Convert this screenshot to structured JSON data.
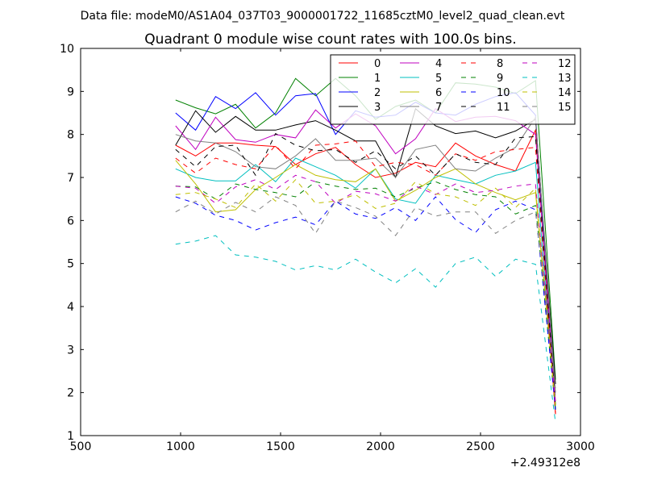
{
  "suptitle": "Data file: modeM0/AS1A04_037T03_9000001722_11685cztM0_level2_quad_clean.evt",
  "chart_data": {
    "type": "line",
    "title": "Quadrant 0 module wise count rates with 100.0s bins.",
    "xlabel": "",
    "ylabel": "",
    "x_offset_label": "+2.49312e8",
    "xlim": [
      500,
      3000
    ],
    "ylim": [
      1,
      10
    ],
    "xticks": [
      500,
      1000,
      1500,
      2000,
      2500,
      3000
    ],
    "xtick_labels": [
      "500",
      "1000",
      "1500",
      "2000",
      "2500",
      "3000"
    ],
    "yticks": [
      1,
      2,
      3,
      4,
      5,
      6,
      7,
      8,
      9,
      10
    ],
    "ytick_labels": [
      "1",
      "2",
      "3",
      "4",
      "5",
      "6",
      "7",
      "8",
      "9",
      "10"
    ],
    "grid": false,
    "legend_position": "top-right",
    "x": [
      975,
      1075,
      1175,
      1275,
      1375,
      1475,
      1575,
      1675,
      1775,
      1875,
      1975,
      2075,
      2175,
      2275,
      2375,
      2475,
      2575,
      2675,
      2775,
      2875
    ],
    "series": [
      {
        "name": "0",
        "color": "#ff0000",
        "style": "solid",
        "values": [
          7.75,
          7.5,
          7.8,
          7.8,
          7.75,
          7.72,
          7.3,
          7.55,
          7.7,
          7.3,
          7.0,
          7.1,
          7.35,
          7.25,
          7.8,
          7.5,
          7.3,
          7.15,
          8.1,
          1.5
        ]
      },
      {
        "name": "1",
        "color": "#008000",
        "style": "solid",
        "values": [
          8.8,
          8.62,
          8.48,
          8.7,
          8.15,
          8.5,
          9.3,
          8.9,
          9.3,
          8.9,
          8.35,
          8.65,
          8.8,
          8.5,
          9.2,
          9.17,
          9.1,
          8.95,
          9.25,
          2.3
        ]
      },
      {
        "name": "2",
        "color": "#0000ff",
        "style": "solid",
        "values": [
          8.5,
          8.1,
          8.88,
          8.6,
          8.97,
          8.45,
          8.9,
          8.95,
          8.0,
          8.55,
          8.4,
          8.45,
          8.75,
          8.5,
          8.45,
          8.7,
          8.88,
          8.97,
          8.45,
          1.6
        ]
      },
      {
        "name": "3",
        "color": "#000000",
        "style": "solid",
        "values": [
          7.75,
          8.55,
          8.05,
          8.42,
          8.1,
          8.1,
          8.22,
          8.32,
          8.1,
          7.85,
          7.85,
          7.0,
          8.6,
          8.2,
          8.02,
          8.08,
          7.92,
          8.08,
          8.35,
          2.2
        ]
      },
      {
        "name": "4",
        "color": "#bf00bf",
        "style": "solid",
        "values": [
          8.2,
          7.65,
          8.4,
          7.88,
          7.82,
          8.0,
          7.92,
          8.57,
          8.15,
          8.48,
          8.2,
          7.55,
          7.9,
          8.6,
          8.3,
          8.4,
          8.42,
          8.32,
          8.0,
          1.8
        ]
      },
      {
        "name": "5",
        "color": "#00bfbf",
        "style": "solid",
        "values": [
          7.2,
          7.0,
          6.92,
          6.92,
          7.3,
          6.9,
          7.45,
          7.25,
          7.05,
          6.75,
          7.2,
          6.5,
          6.4,
          7.05,
          6.95,
          6.85,
          7.05,
          7.15,
          7.35,
          1.6
        ]
      },
      {
        "name": "6",
        "color": "#bfbf00",
        "style": "solid",
        "values": [
          7.4,
          6.85,
          6.2,
          6.25,
          6.72,
          7.0,
          7.3,
          7.05,
          6.95,
          6.9,
          7.2,
          6.45,
          6.7,
          7.0,
          7.2,
          6.85,
          6.65,
          6.48,
          6.65,
          1.7
        ]
      },
      {
        "name": "7",
        "color": "#808080",
        "style": "solid",
        "values": [
          8.0,
          7.85,
          7.8,
          7.6,
          7.25,
          7.2,
          7.5,
          7.9,
          7.4,
          7.4,
          7.45,
          7.0,
          7.65,
          7.75,
          7.2,
          7.15,
          7.45,
          7.7,
          8.4,
          2.0
        ]
      },
      {
        "name": "8",
        "color": "#ff0000",
        "style": "dashed",
        "values": [
          7.45,
          7.1,
          7.45,
          7.3,
          7.2,
          7.75,
          7.2,
          7.75,
          7.78,
          7.85,
          7.25,
          7.35,
          7.3,
          7.05,
          7.55,
          7.4,
          7.6,
          7.65,
          7.7,
          1.5
        ]
      },
      {
        "name": "9",
        "color": "#008000",
        "style": "dashed",
        "values": [
          6.8,
          6.78,
          6.5,
          6.85,
          6.72,
          6.65,
          6.55,
          6.9,
          6.8,
          6.72,
          6.75,
          6.55,
          6.75,
          6.9,
          6.72,
          6.6,
          6.55,
          6.15,
          6.35,
          1.6
        ]
      },
      {
        "name": "10",
        "color": "#0000ff",
        "style": "dashed",
        "values": [
          6.55,
          6.4,
          6.12,
          6.0,
          5.78,
          5.95,
          6.08,
          5.9,
          6.45,
          6.15,
          6.05,
          6.3,
          6.0,
          6.55,
          6.02,
          5.72,
          6.25,
          6.45,
          6.25,
          1.6
        ]
      },
      {
        "name": "11",
        "color": "#000000",
        "style": "dashed",
        "values": [
          7.65,
          7.25,
          7.72,
          7.75,
          7.05,
          8.02,
          7.75,
          7.62,
          7.65,
          7.35,
          7.62,
          7.2,
          7.5,
          7.05,
          7.55,
          7.35,
          7.3,
          7.92,
          7.95,
          1.7
        ]
      },
      {
        "name": "12",
        "color": "#bf00bf",
        "style": "dashed",
        "values": [
          6.8,
          6.75,
          6.4,
          6.78,
          6.95,
          6.72,
          7.05,
          6.9,
          6.4,
          6.68,
          6.62,
          6.45,
          6.8,
          6.6,
          6.85,
          6.65,
          6.7,
          6.8,
          6.85,
          1.7
        ]
      },
      {
        "name": "13",
        "color": "#00bfbf",
        "style": "dashed",
        "values": [
          5.45,
          5.52,
          5.65,
          5.2,
          5.15,
          5.05,
          4.85,
          4.95,
          4.85,
          5.1,
          4.8,
          4.55,
          4.88,
          4.45,
          5.0,
          5.15,
          4.7,
          5.1,
          4.98,
          1.3
        ]
      },
      {
        "name": "14",
        "color": "#bfbf00",
        "style": "dashed",
        "values": [
          6.6,
          6.65,
          6.5,
          6.3,
          6.85,
          6.45,
          6.95,
          6.4,
          6.45,
          6.6,
          6.28,
          6.4,
          6.9,
          6.62,
          6.55,
          6.35,
          6.75,
          6.3,
          6.75,
          1.7
        ]
      },
      {
        "name": "15",
        "color": "#808080",
        "style": "dashed",
        "values": [
          6.2,
          6.45,
          6.15,
          6.42,
          6.2,
          6.55,
          6.35,
          5.7,
          6.45,
          6.3,
          6.1,
          5.65,
          6.3,
          6.1,
          6.2,
          6.2,
          5.7,
          6.0,
          6.2,
          2.1
        ]
      }
    ]
  }
}
